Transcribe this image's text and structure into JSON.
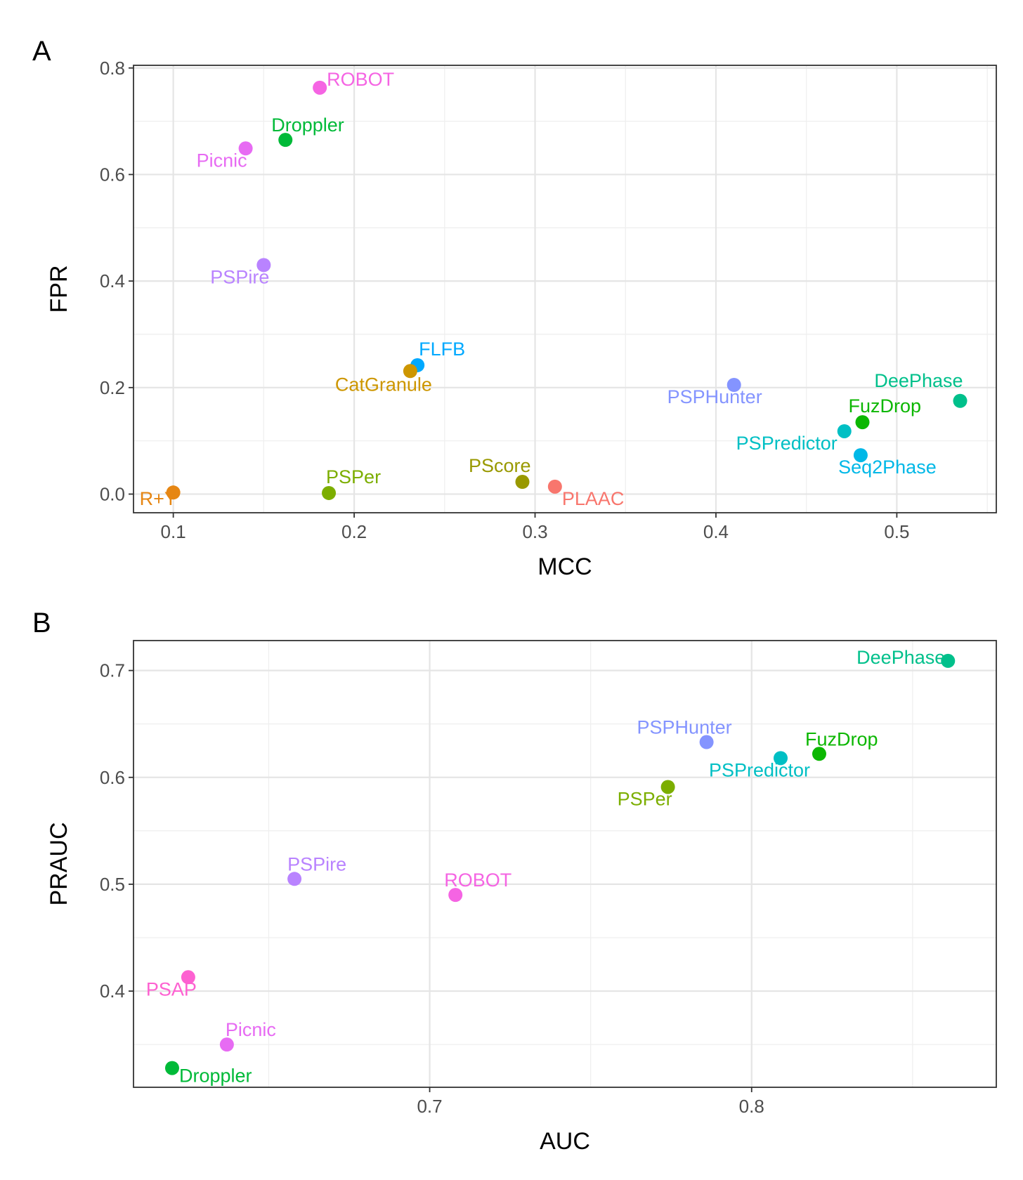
{
  "chart_data": [
    {
      "type": "scatter",
      "panel": "A",
      "xlabel": "MCC",
      "ylabel": "FPR",
      "xlim": [
        0.078,
        0.555
      ],
      "ylim": [
        -0.035,
        0.805
      ],
      "x_ticks": [
        0.1,
        0.2,
        0.3,
        0.4,
        0.5
      ],
      "x_tick_labels": [
        "0.1",
        "0.2",
        "0.3",
        "0.4",
        "0.5"
      ],
      "y_ticks": [
        0.0,
        0.2,
        0.4,
        0.6,
        0.8
      ],
      "y_tick_labels": [
        "0.0",
        "0.2",
        "0.4",
        "0.6",
        "0.8"
      ],
      "grid": true,
      "legend": "none",
      "points": [
        {
          "label": "ROBOT",
          "x": 0.181,
          "y": 0.763,
          "color": "#f564e3",
          "anchor": "start",
          "dx": 10,
          "dy": -3
        },
        {
          "label": "Droppler",
          "x": 0.162,
          "y": 0.665,
          "color": "#00ba38",
          "anchor": "start",
          "dx": -20,
          "dy": -12
        },
        {
          "label": "Picnic",
          "x": 0.14,
          "y": 0.649,
          "color": "#e76bf3",
          "anchor": "end",
          "dx": 2,
          "dy": 26
        },
        {
          "label": "PSPire",
          "x": 0.15,
          "y": 0.43,
          "color": "#b983ff",
          "anchor": "end",
          "dx": 8,
          "dy": 26
        },
        {
          "label": "FLFB",
          "x": 0.235,
          "y": 0.242,
          "color": "#00a9ff",
          "anchor": "start",
          "dx": 2,
          "dy": -14
        },
        {
          "label": "CatGranule",
          "x": 0.231,
          "y": 0.231,
          "color": "#cd9600",
          "anchor": "middle",
          "dx": -38,
          "dy": 28
        },
        {
          "label": "PSPHunter",
          "x": 0.41,
          "y": 0.205,
          "color": "#8494ff",
          "anchor": "end",
          "dx": 40,
          "dy": 26
        },
        {
          "label": "DeePhase",
          "x": 0.535,
          "y": 0.175,
          "color": "#00c08b",
          "anchor": "end",
          "dx": 4,
          "dy": -20
        },
        {
          "label": "FuzDrop",
          "x": 0.481,
          "y": 0.135,
          "color": "#0cb702",
          "anchor": "start",
          "dx": -20,
          "dy": -14
        },
        {
          "label": "PSPredictor",
          "x": 0.471,
          "y": 0.118,
          "color": "#00bfc4",
          "anchor": "end",
          "dx": -10,
          "dy": 26
        },
        {
          "label": "Seq2Phase",
          "x": 0.48,
          "y": 0.073,
          "color": "#00b8e7",
          "anchor": "middle",
          "dx": 38,
          "dy": 26
        },
        {
          "label": "PScore",
          "x": 0.293,
          "y": 0.023,
          "color": "#999900",
          "anchor": "end",
          "dx": 12,
          "dy": -14
        },
        {
          "label": "PLAAC",
          "x": 0.311,
          "y": 0.014,
          "color": "#f8766d",
          "anchor": "start",
          "dx": 10,
          "dy": 26
        },
        {
          "label": "PSPer",
          "x": 0.186,
          "y": 0.002,
          "color": "#7cae00",
          "anchor": "start",
          "dx": -4,
          "dy": -14
        },
        {
          "label": "R+Y",
          "x": 0.1,
          "y": 0.003,
          "color": "#e68613",
          "anchor": "start",
          "dx": -48,
          "dy": 18
        }
      ]
    },
    {
      "type": "scatter",
      "panel": "B",
      "xlabel": "AUC",
      "ylabel": "PRAUC",
      "xlim": [
        0.608,
        0.876
      ],
      "ylim": [
        0.31,
        0.728
      ],
      "x_ticks": [
        0.7,
        0.8
      ],
      "x_tick_labels": [
        "0.7",
        "0.8"
      ],
      "y_ticks": [
        0.4,
        0.5,
        0.6,
        0.7
      ],
      "y_tick_labels": [
        "0.4",
        "0.5",
        "0.6",
        "0.7"
      ],
      "grid": true,
      "legend": "none",
      "points": [
        {
          "label": "DeePhase",
          "x": 0.861,
          "y": 0.709,
          "color": "#00c08b",
          "anchor": "end",
          "dx": -4,
          "dy": 4
        },
        {
          "label": "PSPHunter",
          "x": 0.786,
          "y": 0.633,
          "color": "#8494ff",
          "anchor": "end",
          "dx": 36,
          "dy": -12
        },
        {
          "label": "FuzDrop",
          "x": 0.821,
          "y": 0.622,
          "color": "#0cb702",
          "anchor": "start",
          "dx": -20,
          "dy": -12
        },
        {
          "label": "PSPredictor",
          "x": 0.809,
          "y": 0.618,
          "color": "#00bfc4",
          "anchor": "end",
          "dx": 42,
          "dy": 26
        },
        {
          "label": "PSPer",
          "x": 0.774,
          "y": 0.591,
          "color": "#7cae00",
          "anchor": "end",
          "dx": 6,
          "dy": 26
        },
        {
          "label": "PSPire",
          "x": 0.658,
          "y": 0.505,
          "color": "#b983ff",
          "anchor": "start",
          "dx": -10,
          "dy": -12
        },
        {
          "label": "ROBOT",
          "x": 0.708,
          "y": 0.49,
          "color": "#f564e3",
          "anchor": "start",
          "dx": -16,
          "dy": -12
        },
        {
          "label": "PSAP",
          "x": 0.625,
          "y": 0.413,
          "color": "#fd61d1",
          "anchor": "end",
          "dx": 12,
          "dy": 26
        },
        {
          "label": "Picnic",
          "x": 0.637,
          "y": 0.35,
          "color": "#e76bf3",
          "anchor": "start",
          "dx": -2,
          "dy": -12
        },
        {
          "label": "Droppler",
          "x": 0.62,
          "y": 0.328,
          "color": "#00ba38",
          "anchor": "start",
          "dx": 10,
          "dy": 20
        }
      ]
    }
  ],
  "panels": {
    "A": {
      "letter": "A"
    },
    "B": {
      "letter": "B"
    }
  }
}
